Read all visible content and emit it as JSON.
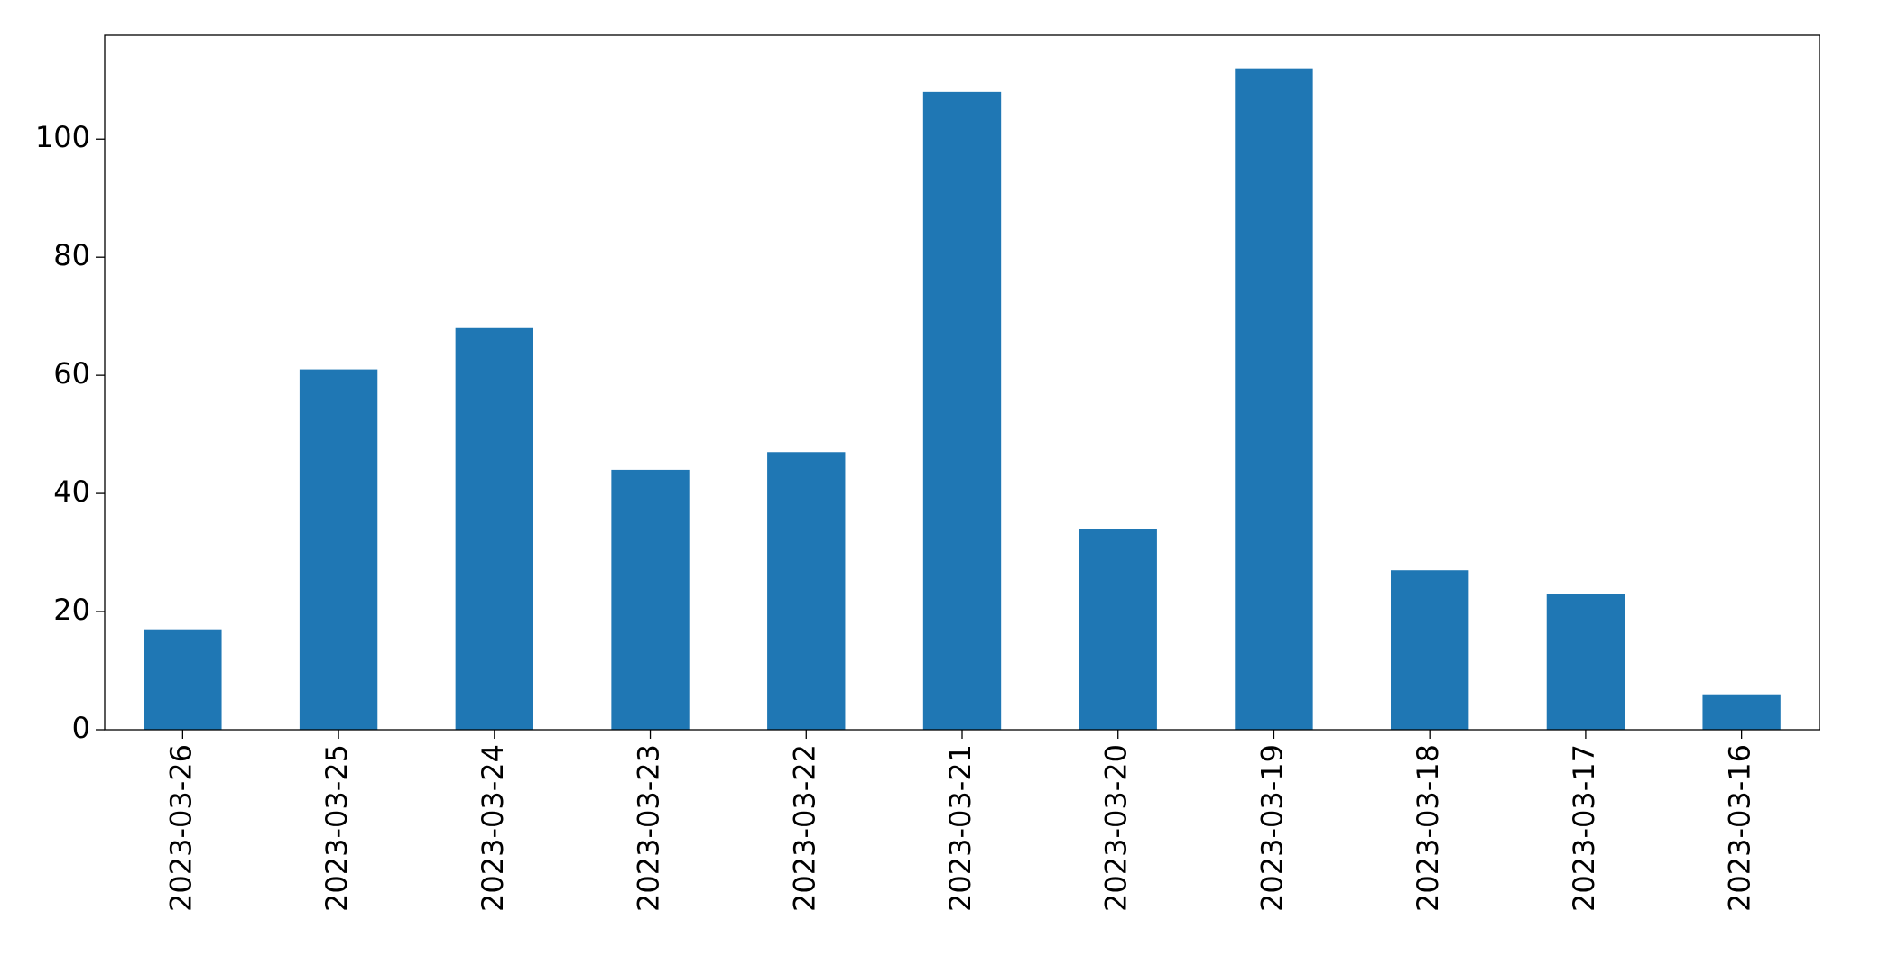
{
  "chart_data": {
    "type": "bar",
    "categories": [
      "2023-03-26",
      "2023-03-25",
      "2023-03-24",
      "2023-03-23",
      "2023-03-22",
      "2023-03-21",
      "2023-03-20",
      "2023-03-19",
      "2023-03-18",
      "2023-03-17",
      "2023-03-16"
    ],
    "values": [
      17,
      61,
      68,
      44,
      47,
      108,
      34,
      112,
      27,
      23,
      6
    ],
    "color": "#1f77b4",
    "ylim": [
      0,
      117.6
    ],
    "yticks": [
      0,
      20,
      40,
      60,
      80,
      100
    ],
    "grid": false
  }
}
